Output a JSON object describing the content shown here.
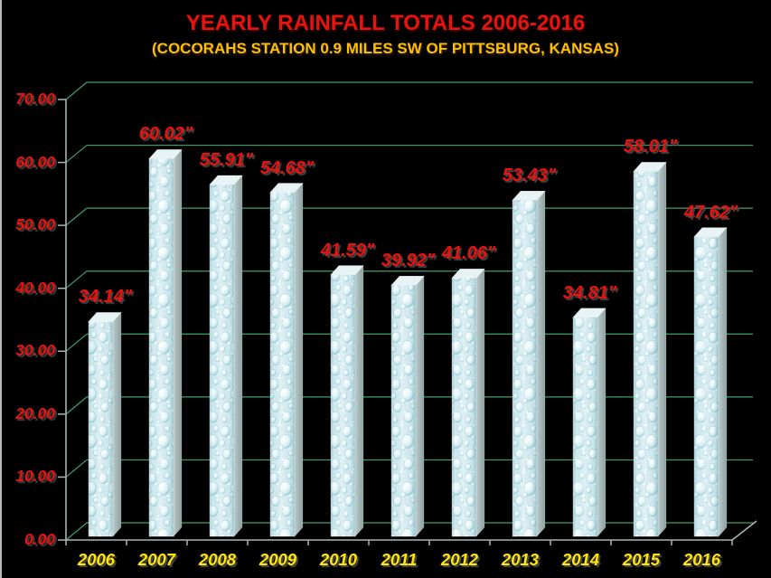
{
  "chart_data": {
    "type": "bar",
    "title": "YEARLY RAINFALL TOTALS 2006-2016",
    "subtitle": "(COCORAHS STATION 0.9 MILES SW OF PITTSBURG, KANSAS)",
    "categories": [
      "2006",
      "2007",
      "2008",
      "2009",
      "2010",
      "2011",
      "2012",
      "2013",
      "2014",
      "2015",
      "2016"
    ],
    "values": [
      34.14,
      60.02,
      55.91,
      54.68,
      41.59,
      39.92,
      41.06,
      53.43,
      34.81,
      58.01,
      47.62
    ],
    "data_labels": [
      "34.14\"",
      "60.02\"",
      "55.91\"",
      "54.68\"",
      "41.59\"",
      "39.92\"",
      "41.06\"",
      "53.43\"",
      "34.81\"",
      "58.01\"",
      "47.62\""
    ],
    "y_tick_labels": [
      "0.00",
      "10.00",
      "20.00",
      "30.00",
      "40.00",
      "50.00",
      "60.00",
      "70.00"
    ],
    "ylim": [
      0,
      70
    ],
    "y_step": 10,
    "grid": true,
    "legend": "none",
    "projection": "3d",
    "style": {
      "background": "#000000",
      "title_color": "#e8130f",
      "subtitle_color": "#ffc000",
      "value_label_color": "#e8130f",
      "y_label_color": "#e8130f",
      "category_label_color": "#ffe50a",
      "grid_color": "#3f9e6e",
      "axis_color": "#a9b5b4",
      "bar_face_color": "#cfe8ed",
      "bar_side_color": "#9aacab",
      "bar_top_color": "#e7f3f5"
    }
  }
}
